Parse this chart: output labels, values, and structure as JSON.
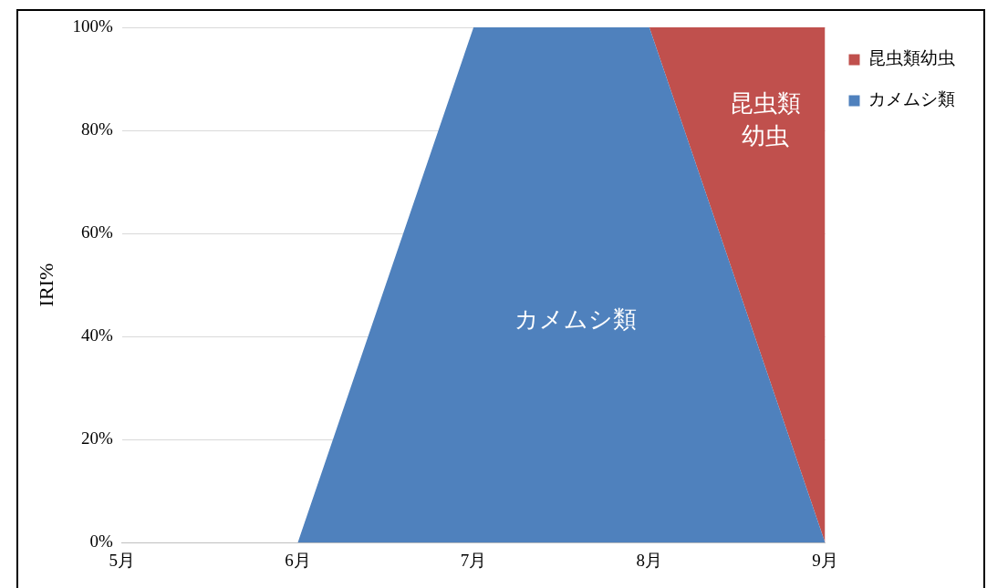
{
  "chart_data": {
    "type": "area",
    "stacked": true,
    "ylabel": "IRI%",
    "categories": [
      "5月",
      "6月",
      "7月",
      "8月",
      "9月"
    ],
    "series": [
      {
        "name": "カメムシ類",
        "color": "#4f81bd",
        "values": [
          0,
          0,
          100,
          100,
          0
        ]
      },
      {
        "name": "昆虫類幼虫",
        "color": "#c0504d",
        "values": [
          null,
          null,
          null,
          0,
          100
        ]
      }
    ],
    "ylim": [
      0,
      100
    ],
    "yticks": [
      {
        "value": 0,
        "label": "0%"
      },
      {
        "value": 20,
        "label": "20%"
      },
      {
        "value": 40,
        "label": "40%"
      },
      {
        "value": 60,
        "label": "60%"
      },
      {
        "value": 80,
        "label": "80%"
      },
      {
        "value": 100,
        "label": "100%"
      }
    ],
    "grid": "y",
    "legend": "top right",
    "marker": "none",
    "annotations": [
      "カメムシ類",
      "昆虫類",
      "幼虫"
    ]
  }
}
